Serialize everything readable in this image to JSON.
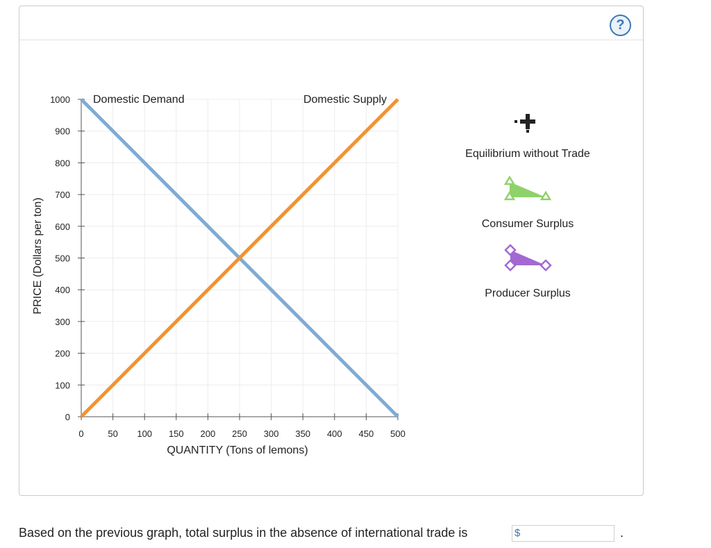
{
  "help_icon": {
    "symbol": "?",
    "name": "help-icon"
  },
  "chart_data": {
    "type": "line",
    "xlabel": "QUANTITY (Tons of lemons)",
    "ylabel": "PRICE (Dollars per ton)",
    "xlim": [
      0,
      500
    ],
    "ylim": [
      0,
      1000
    ],
    "x_ticks": [
      0,
      50,
      100,
      150,
      200,
      250,
      300,
      350,
      400,
      450,
      500
    ],
    "y_ticks": [
      0,
      100,
      200,
      300,
      400,
      500,
      600,
      700,
      800,
      900,
      1000
    ],
    "grid": true,
    "series": [
      {
        "name": "Domestic Demand",
        "color": "#7fabd3",
        "points": [
          [
            0,
            1000
          ],
          [
            500,
            0
          ]
        ]
      },
      {
        "name": "Domestic Supply",
        "color": "#f39231",
        "points": [
          [
            0,
            0
          ],
          [
            500,
            1000
          ]
        ]
      }
    ]
  },
  "tools": {
    "equilibrium": {
      "label": "Equilibrium without Trade",
      "icon": "crosshair-plus-icon",
      "color": "#222222"
    },
    "consumer_surplus": {
      "label": "Consumer Surplus",
      "icon": "green-triangle-icon",
      "color": "#8fd16a"
    },
    "producer_surplus": {
      "label": "Producer Surplus",
      "icon": "purple-triangle-icon",
      "color": "#a368d1"
    }
  },
  "question": {
    "text": "Based on the previous graph, total surplus in the absence of international trade is",
    "currency": "$",
    "answer_value": "",
    "suffix": "."
  }
}
